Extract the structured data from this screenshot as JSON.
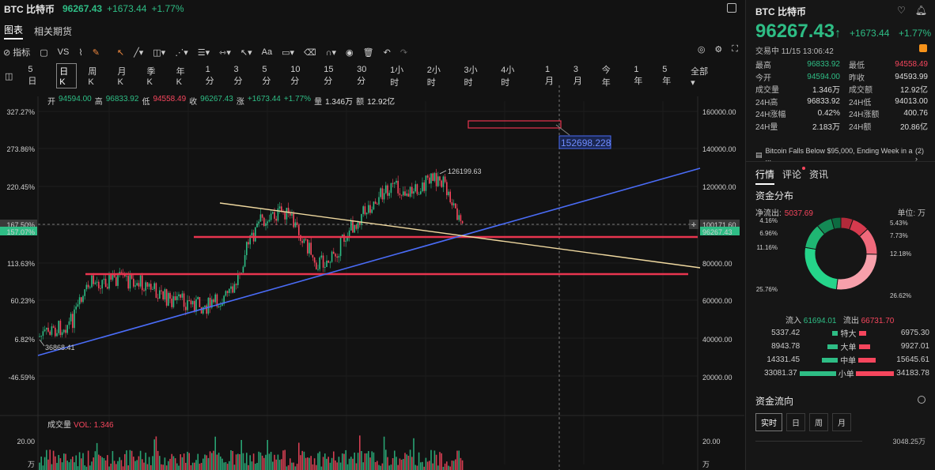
{
  "header": {
    "symbol": "BTC 比特币",
    "price": "96267.43",
    "change": "+1673.44",
    "change_pct": "+1.77%"
  },
  "view_tabs": [
    {
      "label": "图表",
      "active": true
    },
    {
      "label": "相关期货",
      "active": false
    }
  ],
  "toolbar": {
    "indicator_label": "指标",
    "vs_label": "VS",
    "text_tool_label": "Aa"
  },
  "intervals": [
    "5日",
    "日K",
    "周K",
    "月K",
    "季K",
    "年K",
    "1分",
    "3分",
    "5分",
    "10分",
    "15分",
    "30分",
    "1小时",
    "2小时",
    "3小时",
    "4小时",
    "1月",
    "3月",
    "今年",
    "1年",
    "5年",
    "全部"
  ],
  "selected_interval": "日K",
  "ohlc": {
    "open_label": "开",
    "open": "94594.00",
    "high_label": "高",
    "high": "96833.92",
    "low_label": "低",
    "low": "94558.49",
    "close_label": "收",
    "close": "96267.43",
    "chg_label": "涨",
    "chg": "+1673.44",
    "chg_pct": "+1.77%",
    "vol_label": "量",
    "vol": "1.346万",
    "amt_label": "额",
    "amt": "12.92亿"
  },
  "chart": {
    "left_axis": [
      "327.27%",
      "273.86%",
      "220.45%",
      "167.50%",
      "157.07%",
      "113.63%",
      "60.23%",
      "6.82%",
      "-46.59%"
    ],
    "right_axis": [
      "160000.00",
      "140000.00",
      "120000.00",
      "100171.60",
      "96267.43",
      "80000.00",
      "60000.00",
      "40000.00",
      "20000.00"
    ],
    "annotations": {
      "high_label": "126199.63",
      "low_label": "36868.41",
      "target_label": "152698.228"
    },
    "volume_title": "成交量",
    "volume_value": "VOL: 1.346",
    "volume_axis_left": "20.00",
    "volume_axis_right": "20.00",
    "volume_unit": "万"
  },
  "panel": {
    "title": "BTC 比特币",
    "price": "96267.43",
    "change": "+1673.44",
    "change_pct": "+1.77%",
    "status": "交易中 11/15 13:06:42",
    "stats": [
      {
        "l1": "最高",
        "v1": "96833.92",
        "l2": "最低",
        "v2": "94558.49"
      },
      {
        "l1": "今开",
        "v1": "94594.00",
        "l2": "昨收",
        "v2": "94593.99"
      },
      {
        "l1": "成交量",
        "v1": "1.346万",
        "l2": "成交额",
        "v2": "12.92亿"
      },
      {
        "l1": "24H高",
        "v1": "96833.92",
        "l2": "24H低",
        "v2": "94013.00"
      },
      {
        "l1": "24H涨幅",
        "v1": "0.42%",
        "l2": "24H涨额",
        "v2": "400.76"
      },
      {
        "l1": "24H量",
        "v1": "2.183万",
        "l2": "24H额",
        "v2": "20.86亿"
      }
    ],
    "news": "Bitcoin Falls Below $95,000, Ending Week in a ...",
    "news_count": "(2)",
    "tabs": [
      "行情",
      "评论",
      "资讯"
    ],
    "fund_dist_title": "资金分布",
    "net_outflow_label": "净流出:",
    "net_outflow": "5037.69",
    "unit_label": "单位: 万",
    "donut": {
      "labels": [
        "4.16%",
        "6.96%",
        "11.16%",
        "25.76%",
        "5.43%",
        "7.73%",
        "12.18%",
        "26.62%"
      ],
      "values": [
        4.16,
        6.96,
        11.16,
        25.76,
        5.43,
        7.73,
        12.18,
        26.62
      ]
    },
    "inflow_label": "流入",
    "inflow": "61694.01",
    "outflow_label": "流出",
    "outflow": "66731.70",
    "flows": [
      {
        "in": "5337.42",
        "label": "特大",
        "out": "6975.30",
        "in_frac": 0.16,
        "out_frac": 0.2
      },
      {
        "in": "8943.78",
        "label": "大单",
        "out": "9927.01",
        "in_frac": 0.27,
        "out_frac": 0.29
      },
      {
        "in": "14331.45",
        "label": "中单",
        "out": "15645.61",
        "in_frac": 0.42,
        "out_frac": 0.46
      },
      {
        "in": "33081.37",
        "label": "小单",
        "out": "34183.78",
        "in_frac": 0.97,
        "out_frac": 1.0
      }
    ],
    "fund_flow_title": "资金流向",
    "flow_tabs": [
      "实时",
      "日",
      "周",
      "月"
    ],
    "flow_value": "3048.25万"
  },
  "colors": {
    "up": "#2ebd85",
    "down": "#f6465d",
    "trend_blue": "#4a6cf7",
    "trend_yellow": "#f0d9a0"
  }
}
